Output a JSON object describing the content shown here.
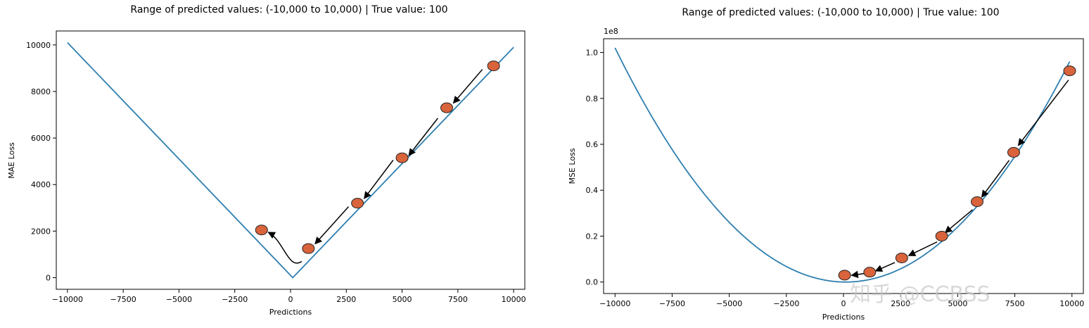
{
  "watermark": "知乎 @CCBSS",
  "chart_data": [
    {
      "type": "line",
      "title": "Range of predicted values: (-10,000 to 10,000) | True value: 100",
      "xlabel": "Predictions",
      "ylabel": "MAE Loss",
      "xlim": [
        -10500,
        10500
      ],
      "ylim": [
        -500,
        10600
      ],
      "x_ticks": [
        -10000,
        -7500,
        -5000,
        -2500,
        0,
        2500,
        5000,
        7500,
        10000
      ],
      "x_tick_labels": [
        "−10000",
        "−7500",
        "−5000",
        "−2500",
        "0",
        "2500",
        "5000",
        "7500",
        "10000"
      ],
      "y_ticks": [
        0,
        2000,
        4000,
        6000,
        8000,
        10000
      ],
      "y_tick_labels": [
        "0",
        "2000",
        "4000",
        "6000",
        "8000",
        "10000"
      ],
      "y_multiplier": "",
      "series": [
        {
          "function": "abs",
          "true_value": 100,
          "x": [
            -10000,
            10000
          ],
          "color": "#2e7fb0"
        }
      ],
      "points": [
        {
          "x": 9100,
          "y": 9100
        },
        {
          "x": 7000,
          "y": 7300
        },
        {
          "x": 5000,
          "y": 5150
        },
        {
          "x": 3000,
          "y": 3200
        },
        {
          "x": 800,
          "y": 1250
        },
        {
          "x": -1300,
          "y": 2050
        }
      ],
      "arrows": [
        {
          "from": [
            8600,
            8950
          ],
          "to": [
            7300,
            7500
          ]
        },
        {
          "from": [
            6600,
            6850
          ],
          "to": [
            5300,
            5250
          ]
        },
        {
          "from": [
            4600,
            5050
          ],
          "to": [
            3300,
            3400
          ]
        },
        {
          "from": [
            2600,
            3050
          ],
          "to": [
            1100,
            1450
          ]
        }
      ],
      "curved_arrow": {
        "from": [
          500,
          700
        ],
        "via": [
          -100,
          1000
        ],
        "to": [
          -1000,
          1950
        ]
      },
      "marker_color": "#d9633b"
    },
    {
      "type": "line",
      "title": "Range of predicted values: (-10,000 to 10,000) | True value: 100",
      "xlabel": "Predictions",
      "ylabel": "MSE Loss",
      "xlim": [
        -10500,
        10500
      ],
      "ylim": [
        -5000000,
        106000000
      ],
      "x_ticks": [
        -10000,
        -7500,
        -5000,
        -2500,
        0,
        2500,
        5000,
        7500,
        10000
      ],
      "x_tick_labels": [
        "−10000",
        "−7500",
        "−5000",
        "−2500",
        "0",
        "2500",
        "5000",
        "7500",
        "10000"
      ],
      "y_ticks": [
        0,
        20000000,
        40000000,
        60000000,
        80000000,
        100000000
      ],
      "y_tick_labels": [
        "0.0",
        "0.2",
        "0.4",
        "0.6",
        "0.8",
        "1.0"
      ],
      "y_multiplier": "1e8",
      "series": [
        {
          "function": "square",
          "true_value": 100,
          "x": [
            -10000,
            9900
          ],
          "color": "#2e7fb0"
        }
      ],
      "points": [
        {
          "x": 9900,
          "y": 92000000
        },
        {
          "x": 7450,
          "y": 56500000
        },
        {
          "x": 5850,
          "y": 35000000
        },
        {
          "x": 4300,
          "y": 20000000
        },
        {
          "x": 2550,
          "y": 10500000
        },
        {
          "x": 1150,
          "y": 4300000
        },
        {
          "x": 50,
          "y": 3000000
        }
      ],
      "arrows": [
        {
          "from": [
            9850,
            88000000
          ],
          "to": [
            7650,
            59500000
          ]
        },
        {
          "from": [
            7250,
            53000000
          ],
          "to": [
            6050,
            37000000
          ]
        },
        {
          "from": [
            5650,
            31500000
          ],
          "to": [
            4450,
            21500000
          ]
        },
        {
          "from": [
            4100,
            17500000
          ],
          "to": [
            2850,
            11500000
          ]
        },
        {
          "from": [
            2250,
            8500000
          ],
          "to": [
            1400,
            4800000
          ]
        },
        {
          "from": [
            900,
            3700000
          ],
          "to": [
            350,
            2900000
          ]
        }
      ],
      "marker_color": "#d9633b"
    }
  ]
}
